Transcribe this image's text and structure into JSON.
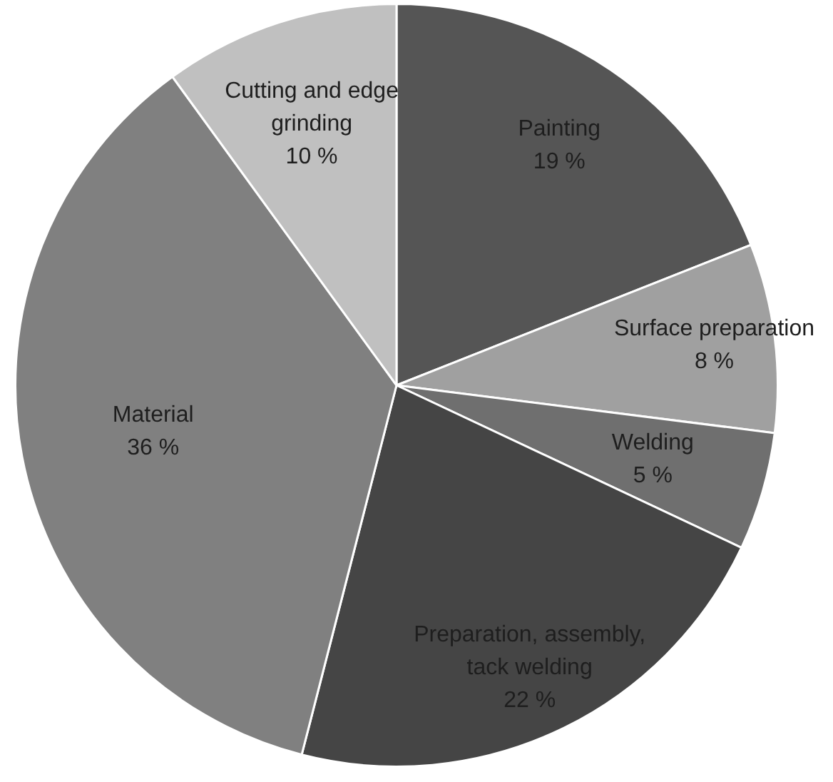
{
  "chart_data": {
    "type": "pie",
    "categories": [
      "Painting",
      "Surface preparation",
      "Welding",
      "Preparation, assembly, tack welding",
      "Material",
      "Cutting and edge grinding"
    ],
    "values": [
      19,
      8,
      5,
      22,
      36,
      10
    ],
    "value_labels": [
      "19 %",
      "8 %",
      "5 %",
      "22 %",
      "36 %",
      "10 %"
    ],
    "colors": [
      "#555555",
      "#a0a0a0",
      "#6f6f6f",
      "#454545",
      "#808080",
      "#c0c0c0"
    ]
  }
}
